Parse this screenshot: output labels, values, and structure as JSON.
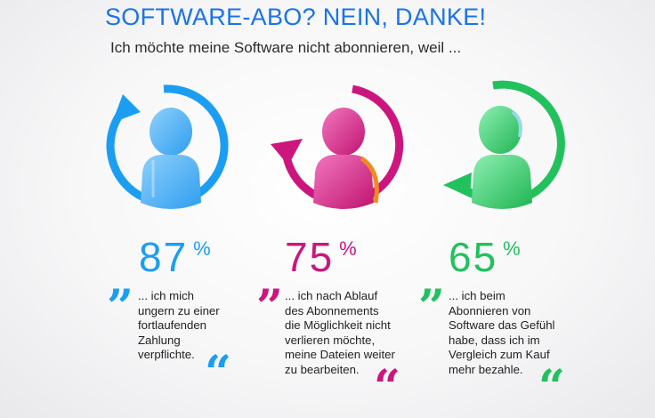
{
  "header": {
    "title": "SOFTWARE-ABO? NEIN, DANKE!",
    "subtitle": "Ich möchte meine Software nicht abonnieren, weil ..."
  },
  "stats": [
    {
      "percent": "87",
      "unit": "%",
      "color": "#1b9ef2",
      "figure_color": "#5bb8f6",
      "icon": "person-refresh-clockwise-icon",
      "quote_lines": [
        "... ich mich",
        "ungern zu einer",
        "fortlaufenden",
        "Zahlung",
        "verpflichte."
      ],
      "open_quote": "”",
      "close_quote": "“"
    },
    {
      "percent": "75",
      "unit": "%",
      "color": "#cc167e",
      "figure_color": "#e33fa1",
      "icon": "person-refresh-counterclockwise-icon",
      "quote_lines": [
        "... ich nach Ablauf",
        "des Abonnements",
        "die Möglichkeit nicht",
        "verlieren möchte,",
        "meine Dateien weiter",
        "zu bearbeiten."
      ],
      "open_quote": "”",
      "close_quote": "“"
    },
    {
      "percent": "65",
      "unit": "%",
      "color": "#22c15e",
      "figure_color": "#4fd884",
      "icon": "person-refresh-counterclockwise-icon",
      "quote_lines": [
        "... ich beim",
        "Abonnieren von",
        "Software das Gefühl",
        "habe, dass ich im",
        "Vergleich zum Kauf",
        "mehr bezahle."
      ],
      "open_quote": "”",
      "close_quote": "“"
    }
  ]
}
